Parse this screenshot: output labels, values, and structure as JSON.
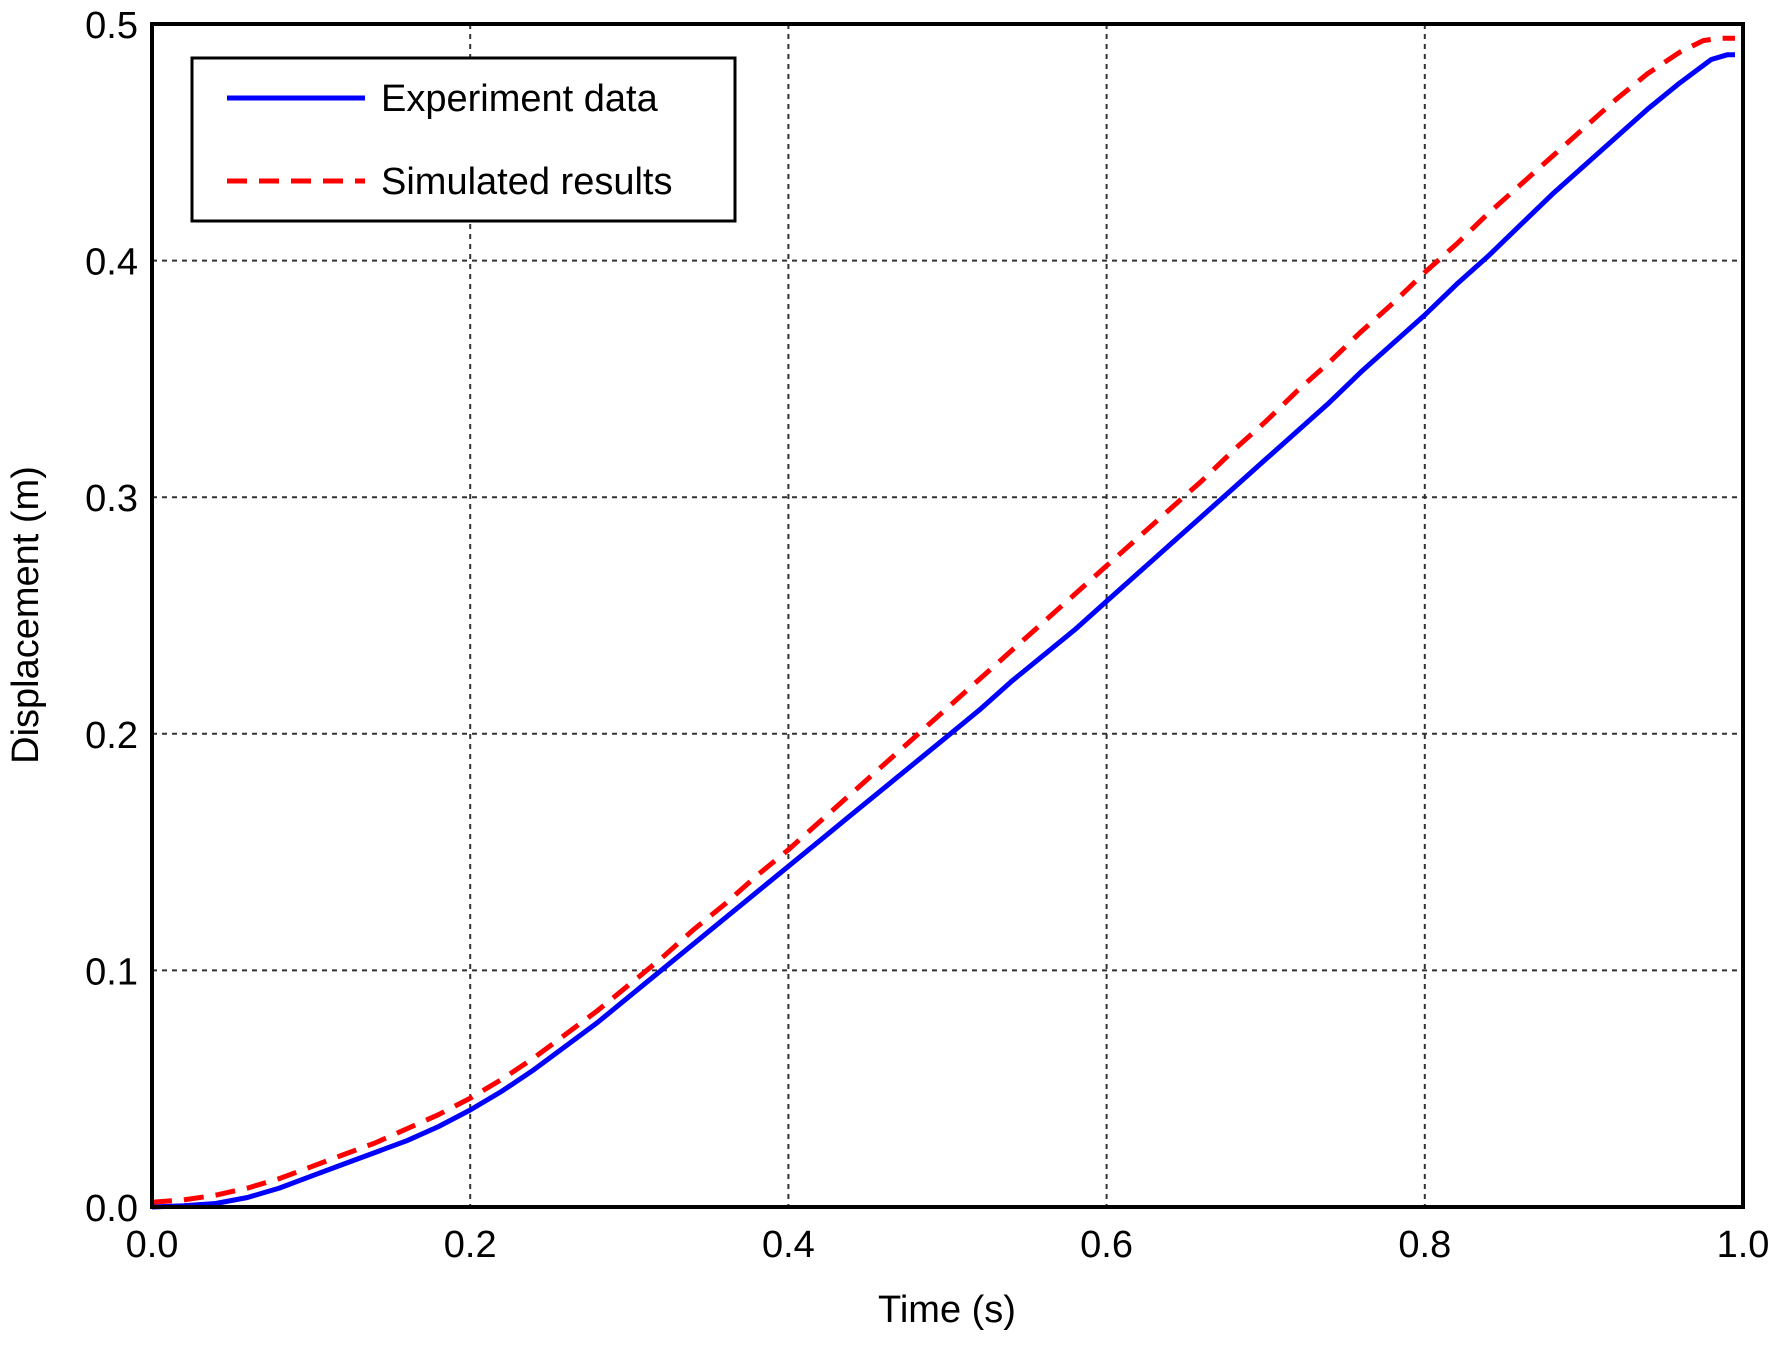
{
  "chart_data": {
    "type": "line",
    "title": "",
    "xlabel": "Time (s)",
    "ylabel": "Displacement (m)",
    "xlim": [
      0.0,
      1.0
    ],
    "ylim": [
      0.0,
      0.5
    ],
    "x_ticks": [
      "0.0",
      "0.2",
      "0.4",
      "0.6",
      "0.8",
      "1.0"
    ],
    "y_ticks": [
      "0.0",
      "0.1",
      "0.2",
      "0.3",
      "0.4",
      "0.5"
    ],
    "grid": true,
    "legend_position": "top-left",
    "series": [
      {
        "name": "Experiment data",
        "color": "#0000ff",
        "style": "solid",
        "x": [
          0.0,
          0.02,
          0.04,
          0.06,
          0.08,
          0.1,
          0.12,
          0.14,
          0.16,
          0.18,
          0.2,
          0.22,
          0.24,
          0.26,
          0.28,
          0.3,
          0.32,
          0.34,
          0.36,
          0.38,
          0.4,
          0.42,
          0.44,
          0.46,
          0.48,
          0.5,
          0.52,
          0.54,
          0.56,
          0.58,
          0.6,
          0.62,
          0.64,
          0.66,
          0.68,
          0.7,
          0.72,
          0.74,
          0.76,
          0.78,
          0.8,
          0.82,
          0.84,
          0.86,
          0.88,
          0.9,
          0.92,
          0.94,
          0.96,
          0.98,
          0.99,
          0.995
        ],
        "y": [
          0.0,
          0.0005,
          0.0015,
          0.004,
          0.008,
          0.013,
          0.018,
          0.023,
          0.028,
          0.034,
          0.041,
          0.049,
          0.058,
          0.068,
          0.078,
          0.089,
          0.1,
          0.111,
          0.122,
          0.133,
          0.144,
          0.155,
          0.166,
          0.177,
          0.188,
          0.199,
          0.21,
          0.222,
          0.233,
          0.244,
          0.256,
          0.268,
          0.28,
          0.292,
          0.304,
          0.316,
          0.328,
          0.34,
          0.353,
          0.365,
          0.377,
          0.39,
          0.402,
          0.415,
          0.428,
          0.44,
          0.452,
          0.464,
          0.475,
          0.485,
          0.487,
          0.487
        ]
      },
      {
        "name": "Simulated results",
        "color": "#ff0000",
        "style": "dashed",
        "x": [
          0.0,
          0.02,
          0.04,
          0.06,
          0.08,
          0.1,
          0.12,
          0.14,
          0.16,
          0.18,
          0.2,
          0.22,
          0.24,
          0.26,
          0.28,
          0.3,
          0.32,
          0.34,
          0.36,
          0.38,
          0.4,
          0.42,
          0.44,
          0.46,
          0.48,
          0.5,
          0.52,
          0.54,
          0.56,
          0.58,
          0.6,
          0.62,
          0.64,
          0.66,
          0.68,
          0.7,
          0.72,
          0.74,
          0.76,
          0.78,
          0.8,
          0.82,
          0.84,
          0.86,
          0.88,
          0.9,
          0.92,
          0.94,
          0.96,
          0.975,
          0.985,
          0.995
        ],
        "y": [
          0.002,
          0.003,
          0.005,
          0.008,
          0.012,
          0.017,
          0.022,
          0.027,
          0.033,
          0.039,
          0.046,
          0.054,
          0.063,
          0.073,
          0.083,
          0.094,
          0.105,
          0.117,
          0.128,
          0.14,
          0.151,
          0.163,
          0.175,
          0.187,
          0.199,
          0.211,
          0.223,
          0.235,
          0.247,
          0.259,
          0.271,
          0.283,
          0.295,
          0.307,
          0.32,
          0.332,
          0.345,
          0.357,
          0.37,
          0.382,
          0.395,
          0.407,
          0.42,
          0.432,
          0.444,
          0.456,
          0.468,
          0.479,
          0.488,
          0.493,
          0.494,
          0.494
        ]
      }
    ]
  }
}
